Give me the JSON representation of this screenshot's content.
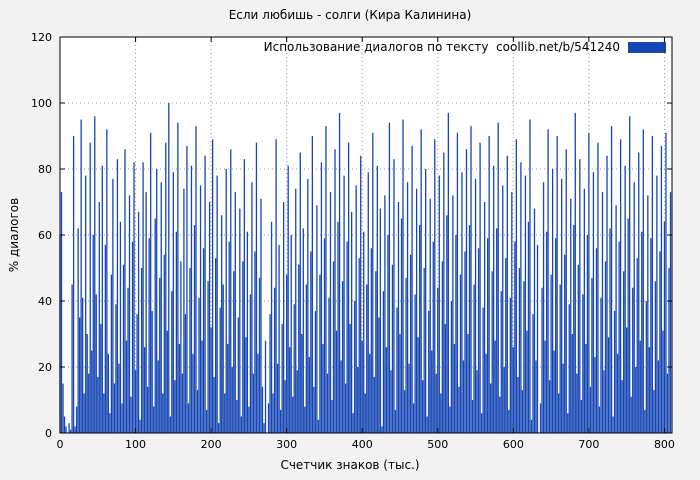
{
  "title": "Если любишь - солги (Кира Калинина)",
  "legend": {
    "label": "Использование диалогов по тексту  coollib.net/b/541240"
  },
  "colors": {
    "bar": "#1646b4",
    "grid": "#9a9a9a",
    "frame": "#000000",
    "plot_bg": "#ffffff",
    "figure_bg": "#f2f2f2"
  },
  "chart_data": {
    "type": "bar",
    "title": "Если любишь - солги (Кира Калинина)",
    "xlabel": "Счетчик знаков (тыс.)",
    "ylabel": "% диалогов",
    "legend": "Использование диалогов по тексту  coollib.net/b/541240",
    "legend_position": "top-right",
    "grid": true,
    "xlim": [
      0,
      810
    ],
    "ylim": [
      0,
      120
    ],
    "x_ticks": [
      0,
      100,
      200,
      300,
      400,
      500,
      600,
      700,
      800
    ],
    "y_ticks": [
      0,
      20,
      40,
      60,
      80,
      100,
      120
    ],
    "x_start": 0,
    "x_step": 2,
    "values": [
      60,
      73,
      15,
      5,
      2,
      0,
      3,
      1,
      45,
      90,
      2,
      8,
      62,
      35,
      95,
      41,
      12,
      78,
      30,
      18,
      88,
      25,
      60,
      96,
      42,
      17,
      70,
      33,
      81,
      12,
      57,
      92,
      24,
      6,
      48,
      77,
      15,
      39,
      83,
      21,
      64,
      9,
      51,
      86,
      28,
      44,
      72,
      11,
      58,
      82,
      19,
      36,
      67,
      4,
      50,
      82,
      26,
      73,
      14,
      59,
      91,
      37,
      8,
      65,
      80,
      22,
      47,
      76,
      12,
      54,
      88,
      31,
      100,
      5,
      43,
      79,
      16,
      61,
      94,
      27,
      52,
      18,
      74,
      36,
      87,
      9,
      50,
      81,
      24,
      63,
      93,
      13,
      41,
      75,
      28,
      56,
      84,
      7,
      46,
      70,
      32,
      89,
      17,
      53,
      78,
      3,
      38,
      66,
      45,
      12,
      80,
      27,
      58,
      86,
      20,
      49,
      73,
      10,
      35,
      68,
      5,
      52,
      83,
      29,
      61,
      8,
      42,
      76,
      18,
      55,
      88,
      24,
      47,
      71,
      14,
      3,
      28,
      0,
      9,
      36,
      64,
      12,
      44,
      89,
      21,
      57,
      7,
      33,
      70,
      16,
      48,
      81,
      26,
      60,
      11,
      39,
      74,
      19,
      51,
      85,
      30,
      62,
      8,
      45,
      77,
      23,
      55,
      90,
      14,
      37,
      69,
      4,
      48,
      82,
      27,
      59,
      93,
      18,
      41,
      73,
      10,
      52,
      86,
      31,
      64,
      97,
      22,
      46,
      78,
      15,
      58,
      88,
      33,
      67,
      6,
      40,
      75,
      20,
      53,
      84,
      28,
      61,
      12,
      45,
      79,
      24,
      56,
      91,
      17,
      49,
      81,
      35,
      68,
      2,
      43,
      72,
      26,
      60,
      94,
      19,
      51,
      83,
      7,
      38,
      70,
      30,
      65,
      95,
      13,
      47,
      76,
      21,
      54,
      87,
      9,
      42,
      74,
      29,
      63,
      92,
      16,
      50,
      80,
      5,
      37,
      71,
      25,
      58,
      89,
      18,
      44,
      78,
      12,
      52,
      85,
      33,
      66,
      97,
      8,
      40,
      72,
      27,
      60,
      91,
      14,
      48,
      79,
      22,
      55,
      86,
      30,
      63,
      93,
      10,
      45,
      77,
      19,
      56,
      88,
      6,
      38,
      70,
      24,
      59,
      90,
      15,
      49,
      81,
      28,
      62,
      94,
      11,
      43,
      75,
      20,
      53,
      84,
      7,
      41,
      73,
      26,
      58,
      89,
      17,
      50,
      82,
      13,
      46,
      78,
      31,
      64,
      95,
      4,
      36,
      68,
      22,
      57,
      0,
      9,
      44,
      76,
      28,
      61,
      92,
      16,
      48,
      80,
      25,
      59,
      90,
      12,
      45,
      77,
      21,
      54,
      86,
      6,
      39,
      71,
      30,
      63,
      97,
      18,
      51,
      83,
      10,
      42,
      74,
      27,
      60,
      91,
      14,
      47,
      79,
      23,
      56,
      88,
      8,
      41,
      73,
      19,
      52,
      84,
      29,
      62,
      93,
      5,
      37,
      69,
      24,
      58,
      89,
      16,
      49,
      81,
      32,
      65,
      96,
      11,
      44,
      76,
      20,
      53,
      85,
      28,
      61,
      92,
      7,
      40,
      72,
      26,
      59,
      90,
      13,
      46,
      78,
      22,
      55,
      87,
      31,
      64,
      91,
      18,
      50,
      73
    ]
  }
}
